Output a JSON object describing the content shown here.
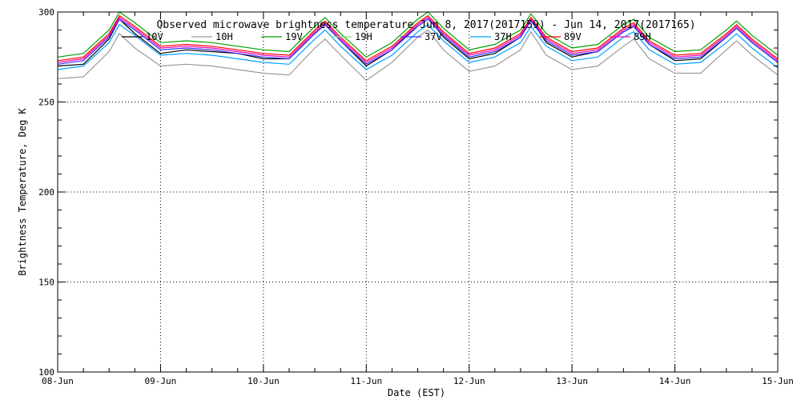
{
  "chart_data": {
    "type": "line",
    "title": "Observed microwave brightness temperature Jun 8, 2017(2017159) - Jun 14, 2017(2017165)",
    "xlabel": "Date (EST)",
    "ylabel": "Brightness Temperature, Deg K",
    "ylim": [
      100,
      300
    ],
    "xlim": [
      0,
      7
    ],
    "x_ticks": [
      0,
      1,
      2,
      3,
      4,
      5,
      6,
      7
    ],
    "x_tick_labels": [
      "08-Jun",
      "09-Jun",
      "10-Jun",
      "11-Jun",
      "12-Jun",
      "13-Jun",
      "14-Jun",
      "15-Jun"
    ],
    "y_ticks": [
      100,
      150,
      200,
      250,
      300
    ],
    "y_tick_labels": [
      "100",
      "150",
      "200",
      "250",
      "300"
    ],
    "grid": true,
    "legend_position": "top",
    "x": [
      0,
      0.25,
      0.5,
      0.6,
      0.75,
      1,
      1.25,
      1.5,
      1.75,
      2,
      2.25,
      2.5,
      2.6,
      2.75,
      3,
      3.25,
      3.5,
      3.6,
      3.75,
      4,
      4.25,
      4.5,
      4.6,
      4.75,
      5,
      5.25,
      5.5,
      5.6,
      5.75,
      6,
      6.25,
      6.5,
      6.6,
      6.75,
      7
    ],
    "series": [
      {
        "name": "10V",
        "color": "#000000",
        "values": [
          270,
          271,
          285,
          296,
          288,
          277,
          279,
          278,
          277,
          274,
          274,
          288,
          293,
          284,
          270,
          279,
          293,
          297,
          286,
          274,
          277,
          286,
          296,
          283,
          275,
          278,
          289,
          292,
          282,
          273,
          274,
          286,
          291,
          283,
          272
        ]
      },
      {
        "name": "10H",
        "color": "#9a9a9a",
        "values": [
          263,
          264,
          278,
          288,
          280,
          270,
          271,
          270,
          268,
          266,
          265,
          280,
          285,
          276,
          262,
          272,
          286,
          290,
          279,
          267,
          270,
          279,
          289,
          276,
          268,
          270,
          281,
          285,
          274,
          266,
          266,
          279,
          284,
          276,
          265
        ]
      },
      {
        "name": "19V",
        "color": "#00a000",
        "values": [
          275,
          277,
          290,
          300,
          294,
          283,
          284,
          283,
          281,
          279,
          278,
          292,
          297,
          288,
          275,
          283,
          296,
          300,
          291,
          279,
          282,
          290,
          299,
          288,
          280,
          282,
          293,
          296,
          286,
          278,
          279,
          290,
          295,
          287,
          276
        ]
      },
      {
        "name": "19H",
        "color": "#80e080",
        "values": [
          272,
          274,
          287,
          297,
          291,
          280,
          281,
          280,
          278,
          276,
          275,
          289,
          294,
          285,
          272,
          280,
          293,
          297,
          288,
          276,
          279,
          287,
          296,
          285,
          277,
          279,
          290,
          293,
          283,
          275,
          276,
          287,
          292,
          284,
          273
        ]
      },
      {
        "name": "37V",
        "color": "#3030ff",
        "values": [
          271,
          273,
          286,
          296,
          290,
          279,
          280,
          279,
          277,
          275,
          274,
          288,
          293,
          284,
          271,
          279,
          292,
          296,
          287,
          275,
          278,
          286,
          295,
          284,
          276,
          278,
          289,
          292,
          282,
          274,
          275,
          286,
          291,
          283,
          272
        ]
      },
      {
        "name": "37H",
        "color": "#00a0ff",
        "values": [
          268,
          270,
          283,
          293,
          287,
          276,
          277,
          276,
          274,
          272,
          271,
          285,
          290,
          281,
          268,
          276,
          289,
          293,
          284,
          272,
          275,
          283,
          292,
          281,
          273,
          275,
          286,
          289,
          279,
          271,
          272,
          283,
          288,
          280,
          269
        ]
      },
      {
        "name": "89V",
        "color": "#ff0000",
        "values": [
          273,
          275,
          288,
          298,
          292,
          281,
          282,
          281,
          279,
          277,
          276,
          290,
          295,
          286,
          273,
          281,
          294,
          298,
          289,
          277,
          280,
          288,
          297,
          286,
          278,
          280,
          291,
          294,
          284,
          276,
          277,
          288,
          293,
          285,
          274
        ]
      },
      {
        "name": "89H",
        "color": "#ff00c0",
        "values": [
          272,
          274,
          287,
          297,
          291,
          280,
          281,
          280,
          278,
          276,
          275,
          289,
          294,
          285,
          272,
          280,
          293,
          297,
          288,
          276,
          279,
          287,
          296,
          285,
          277,
          279,
          290,
          293,
          283,
          275,
          276,
          287,
          292,
          284,
          273
        ]
      }
    ]
  }
}
